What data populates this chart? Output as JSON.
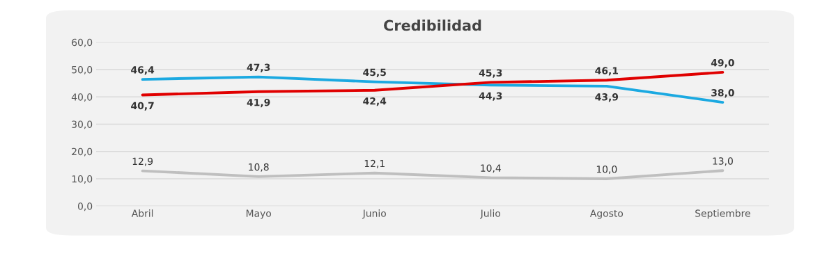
{
  "chart_data": {
    "type": "line",
    "title": "Credibilidad",
    "categories": [
      "Abril",
      "Mayo",
      "Junio",
      "Julio",
      "Agosto",
      "Septiembre"
    ],
    "series": [
      {
        "color": "#1ba9e1",
        "values": [
          46.4,
          47.3,
          45.5,
          44.3,
          43.9,
          38.0
        ],
        "value_labels": [
          "46,4",
          "47,3",
          "45,5",
          "44,3",
          "43,9",
          "38,0"
        ]
      },
      {
        "color": "#e00000",
        "values": [
          40.7,
          41.9,
          42.4,
          45.3,
          46.1,
          49.0
        ],
        "value_labels": [
          "40,7",
          "41,9",
          "42,4",
          "45,3",
          "46,1",
          "49,0"
        ]
      },
      {
        "color": "#bfbfbf",
        "values": [
          12.9,
          10.8,
          12.1,
          10.4,
          10.0,
          13.0
        ],
        "value_labels": [
          "12,9",
          "10,8",
          "12,1",
          "10,4",
          "10,0",
          "13,0"
        ]
      }
    ],
    "ylim": [
      0,
      60
    ],
    "yticks": [
      {
        "value": 0,
        "label": "0,0"
      },
      {
        "value": 10,
        "label": "10,0"
      },
      {
        "value": 20,
        "label": "20,0"
      },
      {
        "value": 30,
        "label": "30,0"
      },
      {
        "value": 40,
        "label": "40,0"
      },
      {
        "value": 50,
        "label": "50,0"
      },
      {
        "value": 60,
        "label": "60,0"
      }
    ],
    "grid": "y",
    "marker": "none",
    "line_style": "solid",
    "legend": false
  }
}
